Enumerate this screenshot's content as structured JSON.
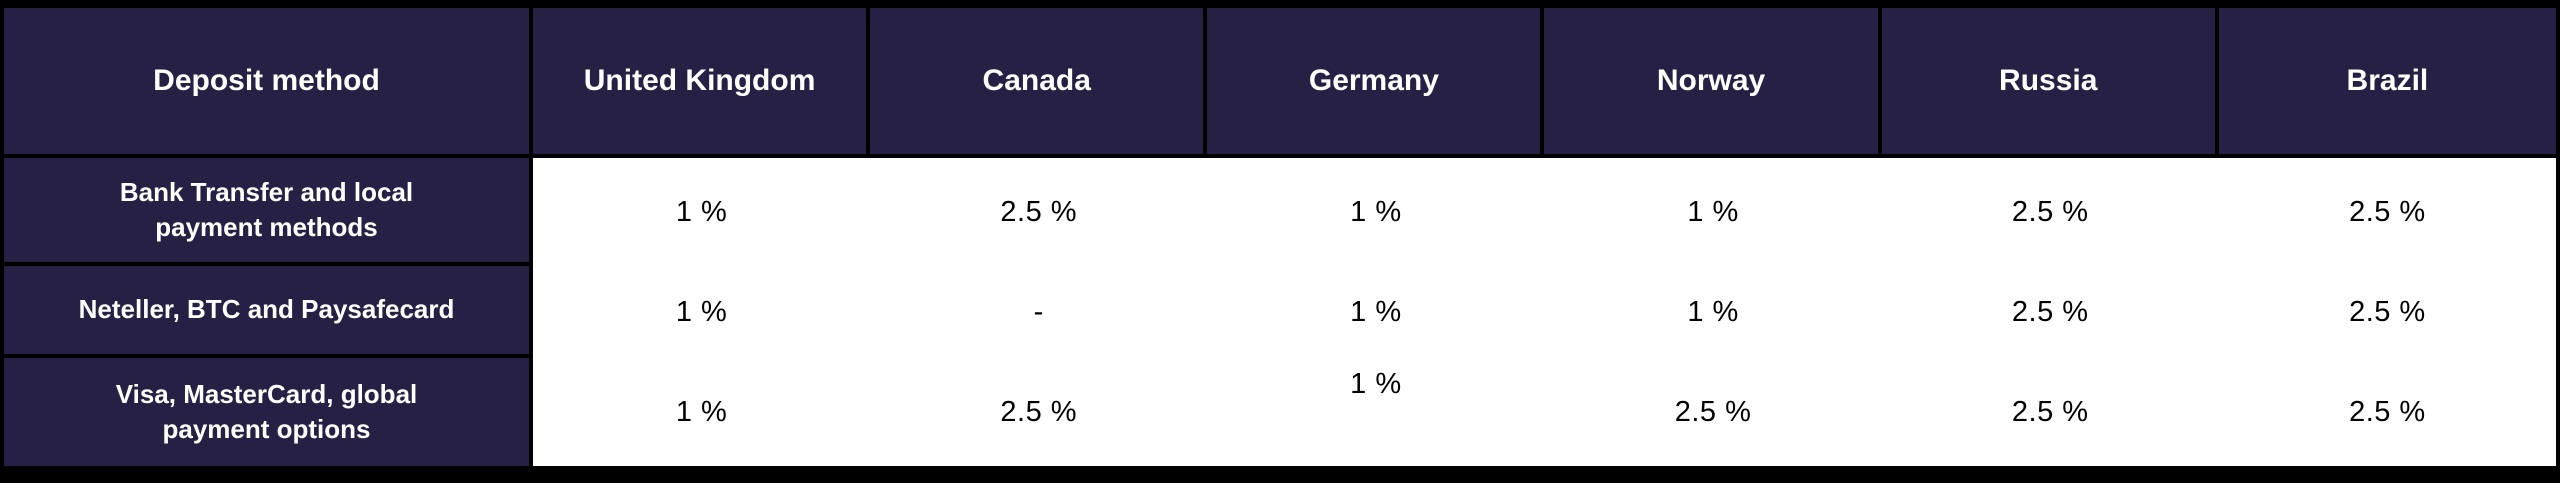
{
  "colors": {
    "header_bg": "#262044",
    "border": "#000000",
    "data_bg": "#ffffff",
    "header_text": "#ffffff",
    "data_text": "#000000"
  },
  "chart_data": {
    "type": "table",
    "columns": [
      "Deposit method",
      "United Kingdom",
      "Canada",
      "Germany",
      "Norway",
      "Russia",
      "Brazil"
    ],
    "rows": [
      {
        "label": "Bank Transfer and local\npayment methods",
        "values": [
          "1 %",
          "2.5 %",
          "1 %",
          "1 %",
          "2.5 %",
          "2.5 %"
        ]
      },
      {
        "label": "Neteller, BTC and Paysafecard",
        "values": [
          "1 %",
          "-",
          "1 %",
          "1 %",
          "2.5 %",
          "2.5 %"
        ]
      },
      {
        "label": "Visa, MasterCard, global\npayment options",
        "values": [
          "1 %",
          "2.5 %",
          "1 %",
          "2.5 %",
          "2.5 %",
          "2.5 %"
        ]
      }
    ]
  }
}
